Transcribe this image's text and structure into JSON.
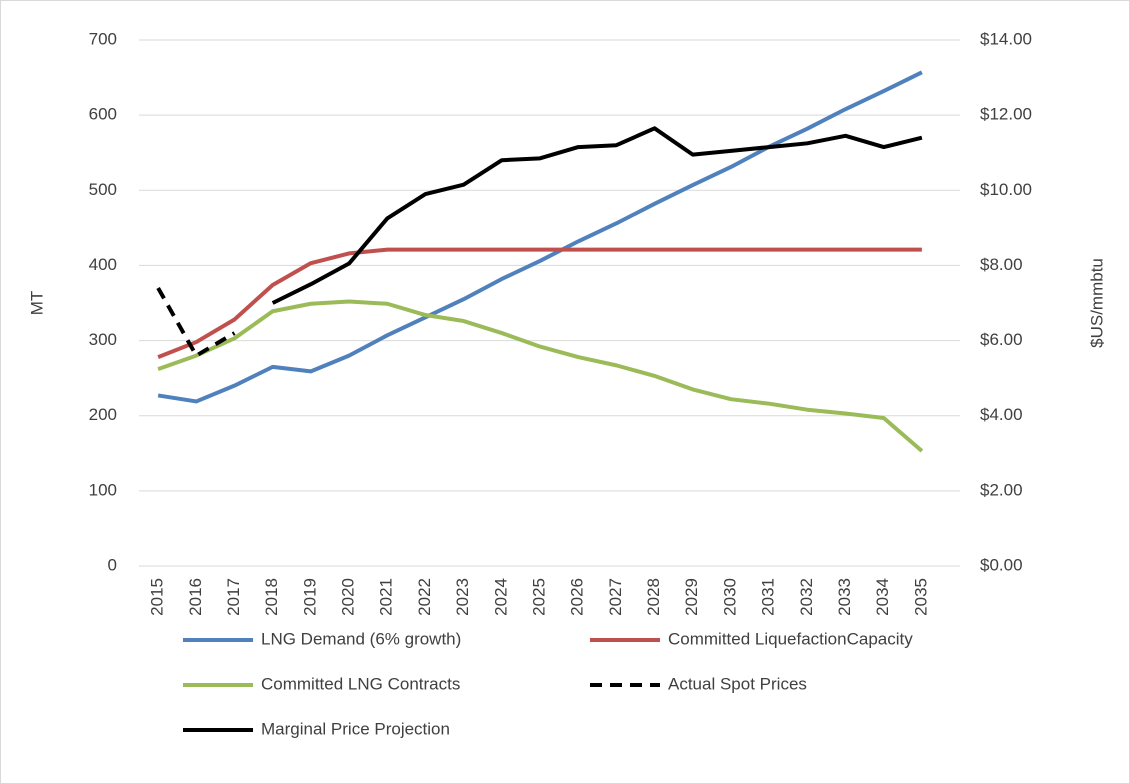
{
  "chart_data": {
    "type": "line",
    "y_label": "MT",
    "y2_label": "$US/mmbtu",
    "categories": [
      "2015",
      "2016",
      "2017",
      "2018",
      "2019",
      "2020",
      "2021",
      "2022",
      "2023",
      "2024",
      "2025",
      "2026",
      "2027",
      "2028",
      "2029",
      "2030",
      "2031",
      "2032",
      "2033",
      "2034",
      "2035"
    ],
    "ylim": [
      0,
      700
    ],
    "yticks": [
      0,
      100,
      200,
      300,
      400,
      500,
      600,
      700
    ],
    "y2lim": [
      0,
      14
    ],
    "y2ticks": [
      {
        "value": 0,
        "label": "$0.00"
      },
      {
        "value": 2,
        "label": "$2.00"
      },
      {
        "value": 4,
        "label": "$4.00"
      },
      {
        "value": 6,
        "label": "$6.00"
      },
      {
        "value": 8,
        "label": "$8.00"
      },
      {
        "value": 10,
        "label": "$10.00"
      },
      {
        "value": 12,
        "label": "$12.00"
      },
      {
        "value": 14,
        "label": "$14.00"
      }
    ],
    "grid": true,
    "legend": "bottom",
    "series": [
      {
        "name": "LNG Demand (6% growth)",
        "color": "#4f81bd",
        "dash": false,
        "values": [
          227,
          219,
          240,
          265,
          259,
          280,
          307,
          331,
          355,
          382,
          406,
          432,
          456,
          482,
          507,
          531,
          558,
          582,
          608,
          632,
          657
        ]
      },
      {
        "name": "Committed LiquefactionCapacity",
        "color": "#c0504d",
        "dash": false,
        "values": [
          278,
          298,
          328,
          374,
          403,
          416,
          421,
          421,
          421,
          421,
          421,
          421,
          421,
          421,
          421,
          421,
          421,
          421,
          421,
          421,
          421
        ]
      },
      {
        "name": "Committed LNG Contracts",
        "color": "#9bbb59",
        "dash": false,
        "values": [
          262,
          280,
          303,
          339,
          349,
          352,
          349,
          334,
          326,
          310,
          292,
          278,
          267,
          253,
          235,
          222,
          216,
          208,
          203,
          197,
          153
        ]
      },
      {
        "name": "Actual Spot Prices",
        "color": "#000000",
        "dash": true,
        "axis": "y2",
        "values": [
          7.4,
          5.6,
          6.2,
          null,
          null,
          null,
          null,
          null,
          null,
          null,
          null,
          null,
          null,
          null,
          null,
          null,
          null,
          null,
          null,
          null,
          null
        ]
      },
      {
        "name": "Marginal Price Projection",
        "color": "#000000",
        "dash": false,
        "axis": "y2",
        "values": [
          null,
          null,
          null,
          7.0,
          7.5,
          8.05,
          9.25,
          9.9,
          10.15,
          10.8,
          10.85,
          11.15,
          11.2,
          11.65,
          10.95,
          11.05,
          11.15,
          11.25,
          11.45,
          11.15,
          11.4
        ]
      }
    ]
  }
}
